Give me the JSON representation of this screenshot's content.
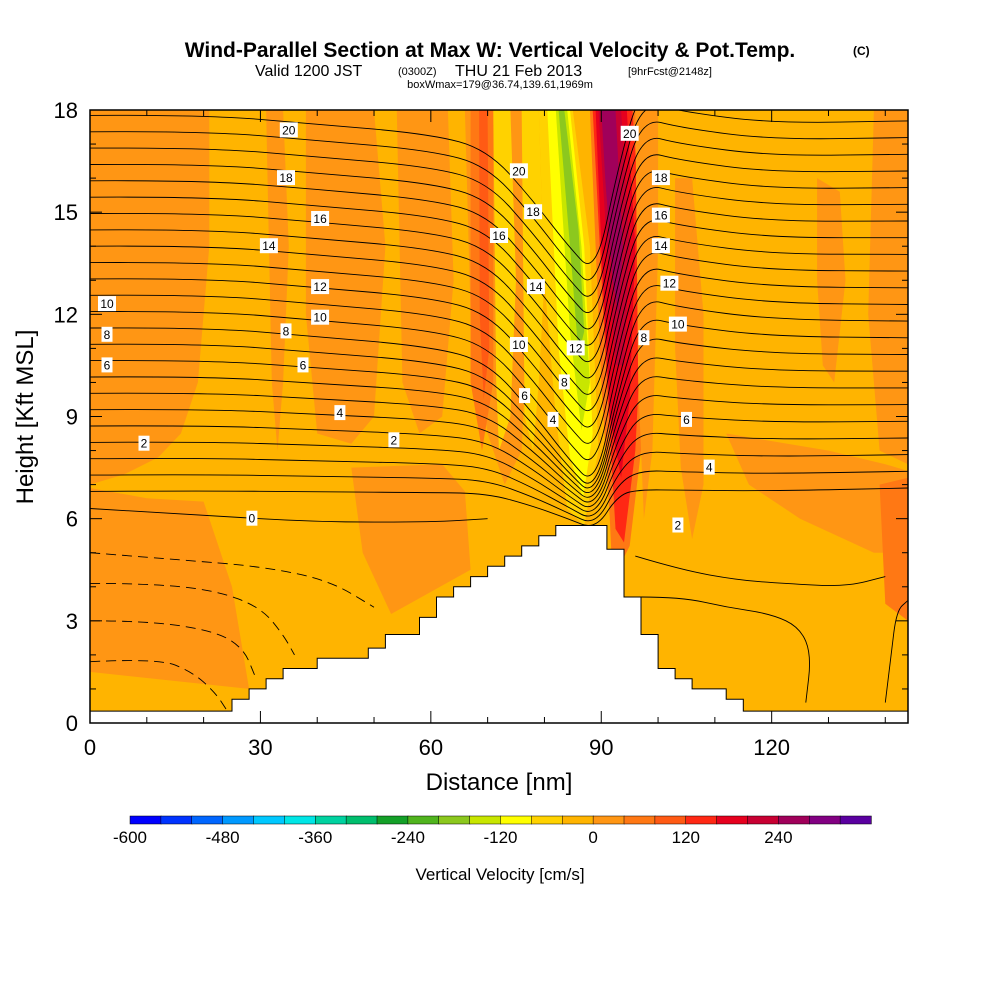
{
  "header": {
    "title": "Wind-Parallel Section at Max W: Vertical Velocity & Pot.Temp.",
    "title_mark": "(C)",
    "subtitle_pre": "Valid 1200 JST",
    "subtitle_utc": "(0300Z)",
    "subtitle_date": "THU 21 Feb 2013",
    "subtitle_fcst": "[9hrFcst@2148z]",
    "subtitle2": "boxWmax=179@36.74,139.61,1969m"
  },
  "chart_data": {
    "type": "heatmap",
    "xlabel": "Distance [nm]",
    "ylabel": "Height [Kft MSL]",
    "xlim": [
      0,
      144
    ],
    "ylim": [
      0,
      18
    ],
    "x_ticks": [
      "0",
      "30",
      "60",
      "90",
      "120"
    ],
    "y_ticks": [
      "0",
      "3",
      "6",
      "9",
      "12",
      "15",
      "18"
    ],
    "colorbar": {
      "label": "Vertical Velocity [cm/s]",
      "tick_labels": [
        "-600",
        "-480",
        "-360",
        "-240",
        "-120",
        "0",
        "120",
        "240"
      ],
      "tick_values": [
        -600,
        -480,
        -360,
        -240,
        -120,
        0,
        120,
        240
      ],
      "levels": [
        -600,
        -560,
        -520,
        -480,
        -440,
        -400,
        -360,
        -320,
        -280,
        -240,
        -200,
        -160,
        -120,
        -80,
        -40,
        0,
        40,
        80,
        120,
        160,
        200,
        240,
        280,
        320
      ],
      "colors": [
        "#0000ff",
        "#0033ff",
        "#0066ff",
        "#0099ff",
        "#00c8ff",
        "#00e6e6",
        "#00d2a0",
        "#00be6e",
        "#14a028",
        "#50b41e",
        "#8cc81e",
        "#c8e600",
        "#ffff00",
        "#ffd200",
        "#ffb400",
        "#ff9614",
        "#ff7814",
        "#ff5a14",
        "#ff2814",
        "#e6001e",
        "#c80032",
        "#a0005a",
        "#820082",
        "#5a00a0"
      ]
    },
    "terrain_profile": {
      "x": [
        0,
        25,
        25,
        28,
        28,
        31,
        31,
        34,
        34,
        37,
        37,
        40,
        40,
        46,
        46,
        49,
        49,
        52,
        52,
        55,
        55,
        58,
        58,
        61,
        61,
        64,
        64,
        67,
        67,
        70,
        70,
        73,
        73,
        76,
        76,
        79,
        79,
        82,
        82,
        91,
        91,
        91.7,
        91.7,
        94,
        94,
        97,
        97,
        100,
        100,
        103,
        103,
        106,
        106,
        112,
        112,
        115,
        115,
        124,
        124,
        140,
        140,
        144
      ],
      "y": [
        0.35,
        0.35,
        0.7,
        0.7,
        1.0,
        1.0,
        1.3,
        1.3,
        1.6,
        1.6,
        1.6,
        1.6,
        1.9,
        1.9,
        1.9,
        1.9,
        2.2,
        2.2,
        2.6,
        2.6,
        2.6,
        2.6,
        3.1,
        3.1,
        3.7,
        3.7,
        4.0,
        4.0,
        4.3,
        4.3,
        4.6,
        4.6,
        4.9,
        4.9,
        5.2,
        5.2,
        5.5,
        5.5,
        5.8,
        5.8,
        5.1,
        5.1,
        5.1,
        5.1,
        3.7,
        3.7,
        2.6,
        2.6,
        1.6,
        1.6,
        1.3,
        1.3,
        1.0,
        1.0,
        0.7,
        0.7,
        0.35,
        0.35,
        0.35,
        0.35,
        0.35,
        0.35
      ]
    },
    "theta_contour_labels": [
      {
        "text": "20",
        "x": 35,
        "y": 17.4
      },
      {
        "text": "18",
        "x": 34.5,
        "y": 16.0
      },
      {
        "text": "16",
        "x": 40.5,
        "y": 14.8
      },
      {
        "text": "14",
        "x": 31.5,
        "y": 14.0
      },
      {
        "text": "12",
        "x": 40.5,
        "y": 12.8
      },
      {
        "text": "10",
        "x": 40.5,
        "y": 11.9
      },
      {
        "text": "8",
        "x": 34.5,
        "y": 11.5
      },
      {
        "text": "6",
        "x": 37.5,
        "y": 10.5
      },
      {
        "text": "4",
        "x": 44,
        "y": 9.1
      },
      {
        "text": "2",
        "x": 53.5,
        "y": 8.3
      },
      {
        "text": "2",
        "x": 9.5,
        "y": 8.2
      },
      {
        "text": "0",
        "x": 28.5,
        "y": 6.0
      },
      {
        "text": "10",
        "x": 3,
        "y": 12.3
      },
      {
        "text": "8",
        "x": 3,
        "y": 11.4
      },
      {
        "text": "6",
        "x": 3,
        "y": 10.5
      },
      {
        "text": "20",
        "x": 75.5,
        "y": 16.2
      },
      {
        "text": "18",
        "x": 78,
        "y": 15.0
      },
      {
        "text": "16",
        "x": 72,
        "y": 14.3
      },
      {
        "text": "14",
        "x": 78.5,
        "y": 12.8
      },
      {
        "text": "10",
        "x": 75.5,
        "y": 11.1
      },
      {
        "text": "6",
        "x": 76.5,
        "y": 9.6
      },
      {
        "text": "12",
        "x": 85.5,
        "y": 11.0
      },
      {
        "text": "8",
        "x": 83.5,
        "y": 10.0
      },
      {
        "text": "4",
        "x": 81.5,
        "y": 8.9
      },
      {
        "text": "20",
        "x": 95,
        "y": 17.3
      },
      {
        "text": "18",
        "x": 100.5,
        "y": 16.0
      },
      {
        "text": "16",
        "x": 100.5,
        "y": 14.9
      },
      {
        "text": "14",
        "x": 100.5,
        "y": 14.0
      },
      {
        "text": "12",
        "x": 102,
        "y": 12.9
      },
      {
        "text": "10",
        "x": 103.5,
        "y": 11.7
      },
      {
        "text": "8",
        "x": 97.5,
        "y": 11.3
      },
      {
        "text": "6",
        "x": 105,
        "y": 8.9
      },
      {
        "text": "4",
        "x": 109,
        "y": 7.5
      },
      {
        "text": "2",
        "x": 103.5,
        "y": 5.8
      }
    ]
  }
}
